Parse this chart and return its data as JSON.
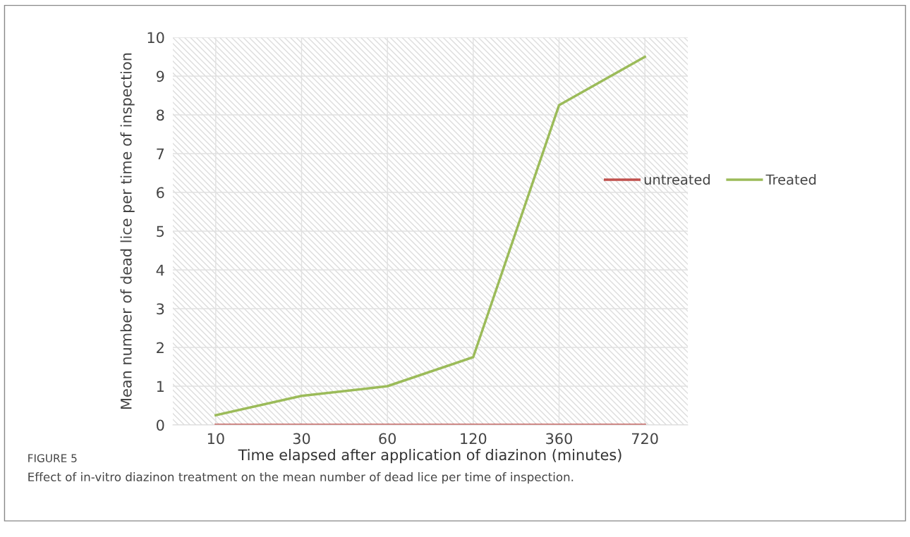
{
  "chart_data": {
    "type": "line",
    "categories": [
      "10",
      "30",
      "60",
      "120",
      "360",
      "720"
    ],
    "series": [
      {
        "name": "untreated",
        "color": "#c0504d",
        "values": [
          0,
          0,
          0,
          0,
          0,
          0
        ]
      },
      {
        "name": "Treated",
        "color": "#9bbb59",
        "values": [
          0.25,
          0.75,
          1.0,
          1.75,
          8.25,
          9.5
        ]
      }
    ],
    "xlabel": "Time elapsed after application of diazinon (minutes)",
    "ylabel": "Mean number of dead lice per time of inspection",
    "ylim": [
      0,
      10
    ],
    "yticks": [
      0,
      1,
      2,
      3,
      4,
      5,
      6,
      7,
      8,
      9,
      10
    ],
    "grid": true,
    "legend": "right",
    "marker": "none",
    "line_style": "solid",
    "annotations": [
      "FIGURE 5",
      "Effect of in-vitro diazinon treatment on the mean number of dead lice per time of inspection."
    ]
  }
}
